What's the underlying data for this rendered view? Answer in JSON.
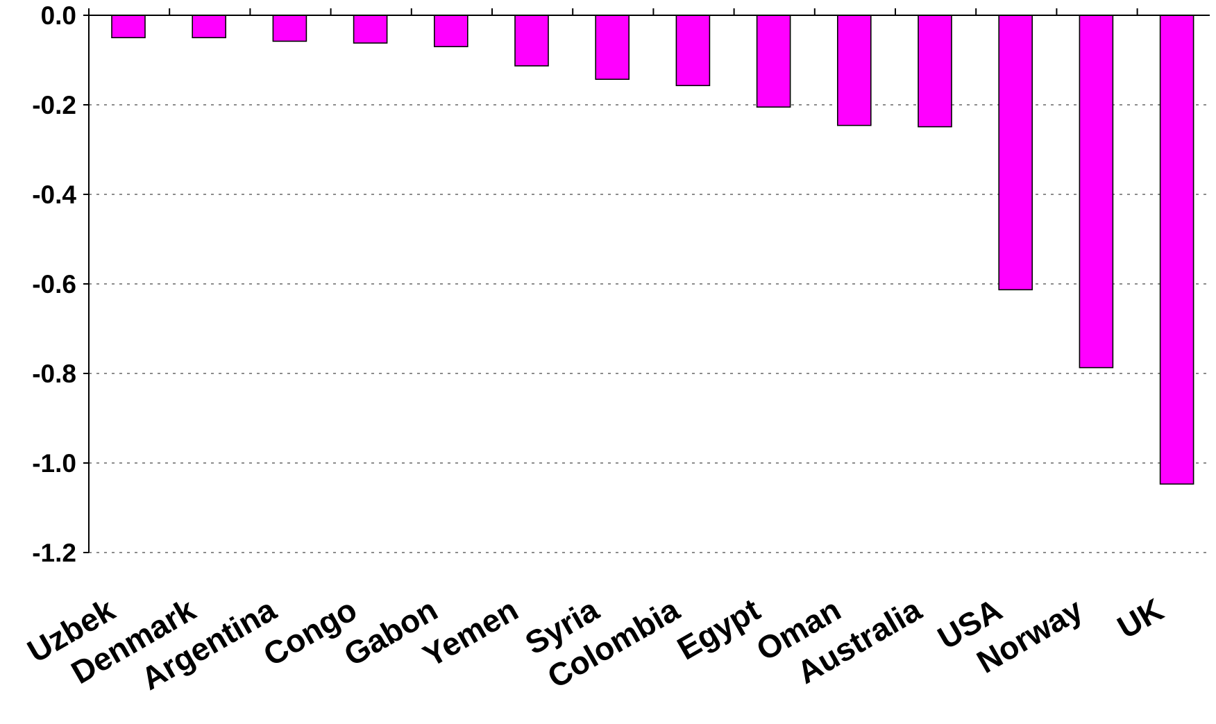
{
  "chart_data": {
    "type": "bar",
    "categories": [
      "Uzbek",
      "Denmark",
      "Argentina",
      "Congo",
      "Gabon",
      "Yemen",
      "Syria",
      "Colombia",
      "Egypt",
      "Oman",
      "Australia",
      "USA",
      "Norway",
      "UK"
    ],
    "values": [
      -0.05,
      -0.05,
      -0.058,
      -0.062,
      -0.07,
      -0.113,
      -0.143,
      -0.157,
      -0.205,
      -0.246,
      -0.249,
      -0.613,
      -0.787,
      -1.047
    ],
    "title": "",
    "xlabel": "",
    "ylabel": "",
    "ylim": [
      -1.2,
      0.0
    ],
    "yticks": [
      "0.0",
      "-0.2",
      "-0.4",
      "-0.6",
      "-0.8",
      "-1.0",
      "-1.2"
    ],
    "grid": "horizontal dotted",
    "bar_color": "#ff00ff"
  }
}
